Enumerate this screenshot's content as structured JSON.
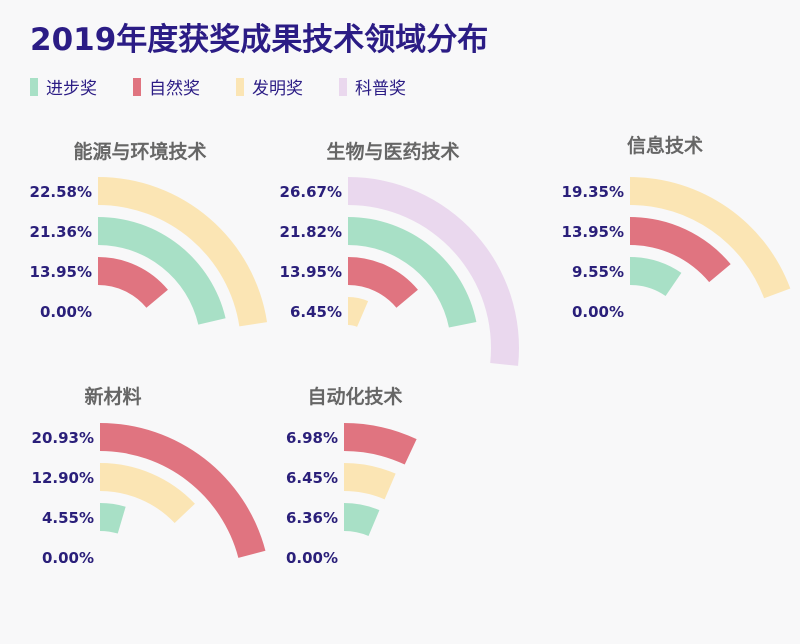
{
  "title": "2019年度获奖成果技术领域分布",
  "legend": [
    {
      "label": "进步奖",
      "key": "progress",
      "color": "#a8e0c6"
    },
    {
      "label": "自然奖",
      "key": "natural",
      "color": "#e07480"
    },
    {
      "label": "发明奖",
      "key": "invention",
      "color": "#fbe5b4"
    },
    {
      "label": "科普奖",
      "key": "popsci",
      "color": "#ead8ee"
    }
  ],
  "chart_data": [
    {
      "type": "radial-bar",
      "title": "能源与环境技术",
      "unit": "%",
      "full_circle_value": 100,
      "rings": [
        {
          "category": "invention",
          "value": 22.58,
          "label": "22.58%"
        },
        {
          "category": "progress",
          "value": 21.36,
          "label": "21.36%"
        },
        {
          "category": "natural",
          "value": 13.95,
          "label": "13.95%"
        },
        {
          "category": "popsci",
          "value": 0.0,
          "label": "0.00%"
        }
      ]
    },
    {
      "type": "radial-bar",
      "title": "生物与医药技术",
      "unit": "%",
      "full_circle_value": 100,
      "rings": [
        {
          "category": "popsci",
          "value": 26.67,
          "label": "26.67%"
        },
        {
          "category": "progress",
          "value": 21.82,
          "label": "21.82%"
        },
        {
          "category": "natural",
          "value": 13.95,
          "label": "13.95%"
        },
        {
          "category": "invention",
          "value": 6.45,
          "label": "6.45%"
        }
      ]
    },
    {
      "type": "radial-bar",
      "title": "信息技术",
      "unit": "%",
      "full_circle_value": 100,
      "rings": [
        {
          "category": "invention",
          "value": 19.35,
          "label": "19.35%"
        },
        {
          "category": "natural",
          "value": 13.95,
          "label": "13.95%"
        },
        {
          "category": "progress",
          "value": 9.55,
          "label": "9.55%"
        },
        {
          "category": "popsci",
          "value": 0.0,
          "label": "0.00%"
        }
      ]
    },
    {
      "type": "radial-bar",
      "title": "新材料",
      "unit": "%",
      "full_circle_value": 100,
      "rings": [
        {
          "category": "natural",
          "value": 20.93,
          "label": "20.93%"
        },
        {
          "category": "invention",
          "value": 12.9,
          "label": "12.90%"
        },
        {
          "category": "progress",
          "value": 4.55,
          "label": "4.55%"
        },
        {
          "category": "popsci",
          "value": 0.0,
          "label": "0.00%"
        }
      ]
    },
    {
      "type": "radial-bar",
      "title": "自动化技术",
      "unit": "%",
      "full_circle_value": 100,
      "rings": [
        {
          "category": "natural",
          "value": 6.98,
          "label": "6.98%"
        },
        {
          "category": "invention",
          "value": 6.45,
          "label": "6.45%"
        },
        {
          "category": "progress",
          "value": 6.36,
          "label": "6.36%"
        },
        {
          "category": "popsci",
          "value": 0.0,
          "label": "0.00%"
        }
      ]
    }
  ]
}
